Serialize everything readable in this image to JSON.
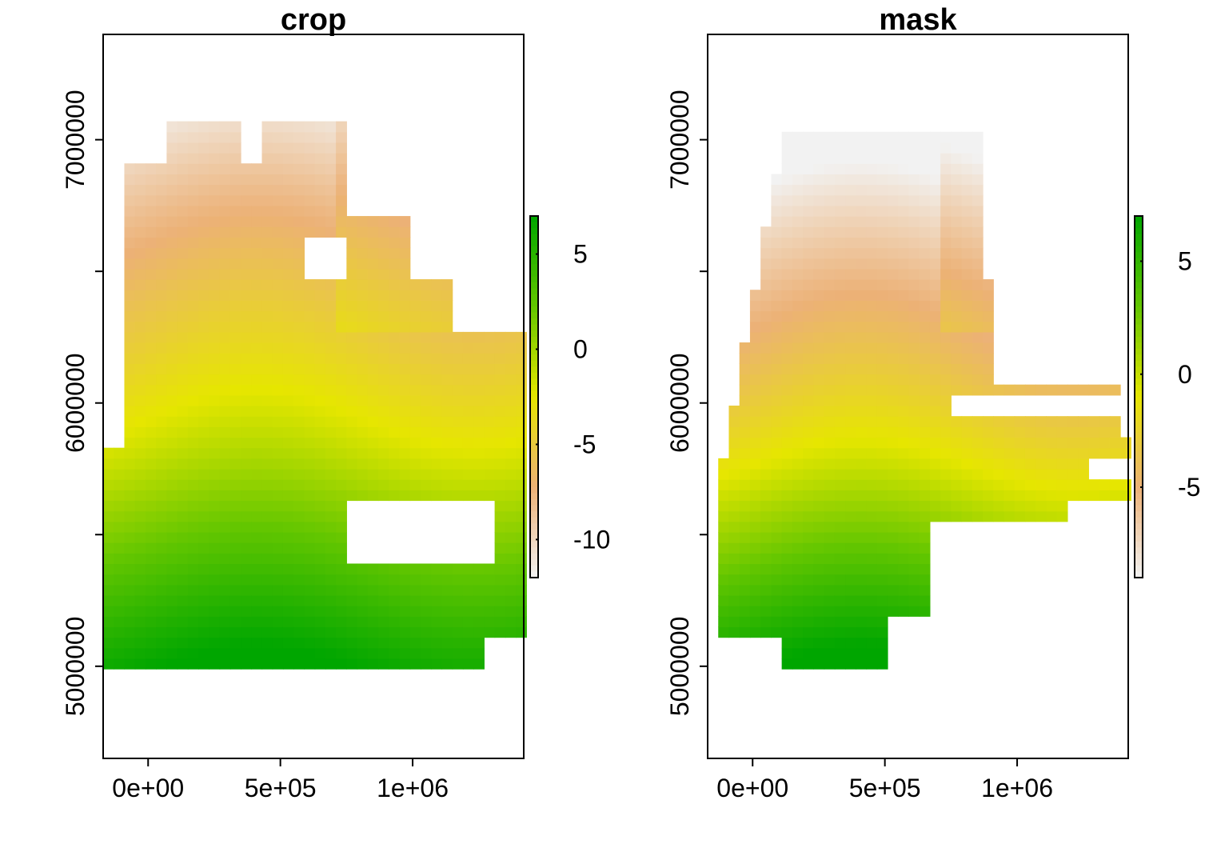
{
  "chart_data": [
    {
      "type": "heatmap",
      "title": "crop",
      "xlabel": "",
      "ylabel": "",
      "xlim": [
        -170000,
        1420000
      ],
      "ylim": [
        4650000,
        7400000
      ],
      "x_ticks": [
        {
          "value": 0,
          "label": "0e+00"
        },
        {
          "value": 500000,
          "label": "5e+05"
        },
        {
          "value": 1000000,
          "label": "1e+06"
        }
      ],
      "y_ticks": [
        {
          "value": 5000000,
          "label": "5000000"
        },
        {
          "value": 5500000,
          "label": ""
        },
        {
          "value": 6000000,
          "label": "6000000"
        },
        {
          "value": 6500000,
          "label": ""
        },
        {
          "value": 7000000,
          "label": "7000000"
        }
      ],
      "colorbar": {
        "range": [
          -12,
          7
        ],
        "ticks": [
          {
            "value": 5,
            "label": "5"
          },
          {
            "value": 0,
            "label": "0"
          },
          {
            "value": -5,
            "label": "-5"
          },
          {
            "value": -10,
            "label": "-10"
          }
        ],
        "colors": [
          "#f2f2f2",
          "#ecb176",
          "#e6e600",
          "#63c600",
          "#00a600"
        ]
      },
      "grid": "off",
      "legend": "right"
    },
    {
      "type": "heatmap",
      "title": "mask",
      "xlabel": "",
      "ylabel": "",
      "xlim": [
        -170000,
        1420000
      ],
      "ylim": [
        4650000,
        7400000
      ],
      "x_ticks": [
        {
          "value": 0,
          "label": "0e+00"
        },
        {
          "value": 500000,
          "label": "5e+05"
        },
        {
          "value": 1000000,
          "label": "1e+06"
        }
      ],
      "y_ticks": [
        {
          "value": 5000000,
          "label": "5000000"
        },
        {
          "value": 5500000,
          "label": ""
        },
        {
          "value": 6000000,
          "label": "6000000"
        },
        {
          "value": 6500000,
          "label": ""
        },
        {
          "value": 7000000,
          "label": "7000000"
        }
      ],
      "colorbar": {
        "range": [
          -9,
          7
        ],
        "ticks": [
          {
            "value": 5,
            "label": "5"
          },
          {
            "value": 0,
            "label": "0"
          },
          {
            "value": -5,
            "label": "-5"
          }
        ],
        "colors": [
          "#f2f2f2",
          "#ecb176",
          "#e6e600",
          "#63c600",
          "#00a600"
        ]
      },
      "grid": "off",
      "legend": "right"
    }
  ]
}
